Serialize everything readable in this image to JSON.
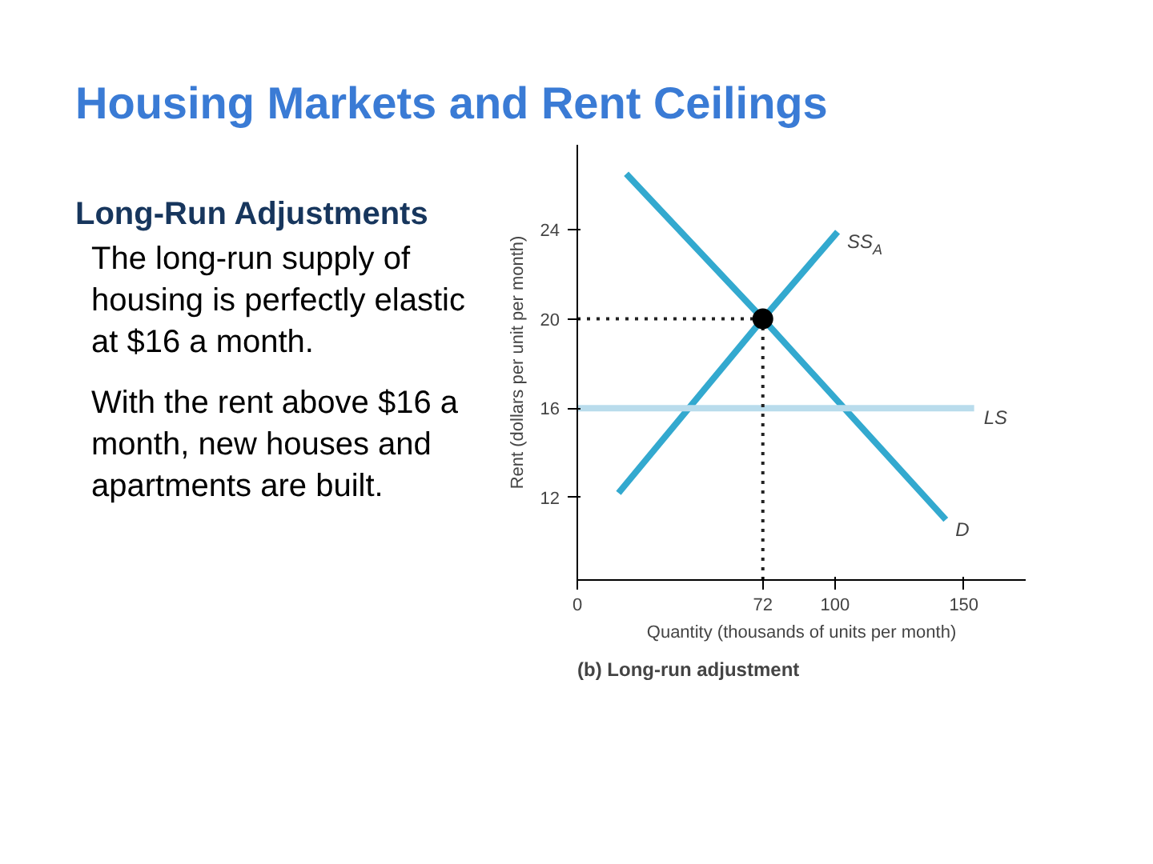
{
  "chart_data": {
    "type": "line",
    "title": "Housing Markets and Rent Ceilings",
    "subtitle": "Long-Run Adjustments",
    "annotations": [
      "The long-run supply of housing is perfectly elastic at $16 a month.",
      "With the rent above $16 a month, new houses and apartments are built.",
      "(b) Long-run adjustment"
    ],
    "xlabel": "Quantity (thousands of units per month)",
    "ylabel": "Rent (dollars per unit per month)",
    "xlim": [
      0,
      174
    ],
    "ylim": [
      8.3,
      27.8
    ],
    "xticks": [
      0,
      72,
      100,
      150
    ],
    "yticks": [
      12,
      16,
      20,
      24
    ],
    "grid": false,
    "marker": "none",
    "series": [
      {
        "name": "D",
        "color": "#33a9cf",
        "x": [
          19,
          72,
          143
        ],
        "values": [
          26.5,
          20,
          11
        ]
      },
      {
        "name": "SS$_{A}$",
        "color": "#33a9cf",
        "x": [
          16,
          72,
          101
        ],
        "values": [
          12.2,
          20,
          23.9
        ]
      },
      {
        "name": "LS",
        "color": "#b9dcec",
        "x": [
          0,
          154
        ],
        "values": [
          16,
          16
        ]
      },
      {
        "type": "line",
        "color": "#222222",
        "line_style": "dotted",
        "x": [
          0,
          72
        ],
        "values": [
          20,
          20
        ]
      },
      {
        "type": "line",
        "color": "#222222",
        "line_style": "dotted",
        "x": [
          72,
          72
        ],
        "values": [
          8.3,
          20
        ]
      },
      {
        "type": "scatter",
        "marker": "circle",
        "color": "#000000",
        "x": [
          72
        ],
        "values": [
          20
        ]
      }
    ]
  }
}
